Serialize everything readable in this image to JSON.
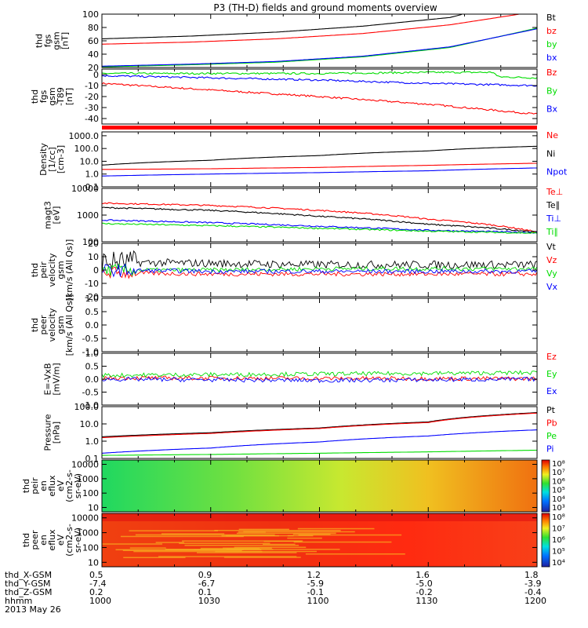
{
  "title": "P3 (TH-D) fields and ground moments overview",
  "colors": {
    "black": "#000000",
    "red": "#ff0000",
    "green": "#00dd00",
    "blue": "#0000ff"
  },
  "chart_data": [
    {
      "type": "line",
      "ylabel": [
        "thd",
        "fgs",
        "gsm",
        "[nT]"
      ],
      "ylim": [
        20,
        100
      ],
      "scale": "linear",
      "yticks": [
        20,
        40,
        60,
        80,
        100
      ],
      "ytick_labels": [
        "20",
        "40",
        "60",
        "80",
        "100"
      ],
      "series": [
        {
          "name": "Bt",
          "color": "#000000",
          "x": [
            0,
            0.2,
            0.4,
            0.6,
            0.8,
            0.83
          ],
          "y": [
            63,
            67,
            73,
            82,
            95,
            100
          ]
        },
        {
          "name": "bz",
          "color": "#ff0000",
          "x": [
            0,
            0.2,
            0.4,
            0.6,
            0.8,
            0.96
          ],
          "y": [
            55,
            58,
            63,
            71,
            84,
            100
          ]
        },
        {
          "name": "by",
          "color": "#00dd00",
          "x": [
            0,
            0.2,
            0.4,
            0.6,
            0.8,
            1.0
          ],
          "y": [
            21,
            24,
            28,
            36,
            50,
            79
          ]
        },
        {
          "name": "bx",
          "color": "#0000ff",
          "x": [
            0,
            0.2,
            0.4,
            0.6,
            0.8,
            1.0
          ],
          "y": [
            22,
            25,
            29,
            37,
            51,
            78
          ]
        }
      ]
    },
    {
      "type": "line",
      "ylabel": [
        "thd",
        "fgs",
        "gsm",
        "-T89",
        "[nT]"
      ],
      "ylim": [
        -45,
        5
      ],
      "scale": "linear",
      "yticks": [
        -40,
        -30,
        -20,
        -10,
        0
      ],
      "ytick_labels": [
        "-40",
        "-30",
        "-20",
        "-10",
        "0"
      ],
      "series": [
        {
          "name": "Bz",
          "color": "#ff0000",
          "x": [
            0,
            0.25,
            0.5,
            0.75,
            1.0
          ],
          "y": [
            -8,
            -14,
            -20,
            -27,
            -36
          ]
        },
        {
          "name": "By",
          "color": "#00dd00",
          "x": [
            0,
            0.25,
            0.5,
            0.75,
            0.9,
            0.91,
            1.0
          ],
          "y": [
            1,
            1,
            1,
            2,
            2,
            -2,
            -3
          ]
        },
        {
          "name": "Bx",
          "color": "#0000ff",
          "x": [
            0,
            0.25,
            0.5,
            0.75,
            1.0
          ],
          "y": [
            -1,
            -3,
            -5,
            -8,
            -10
          ]
        }
      ]
    },
    {
      "type": "line",
      "ylabel": [
        "Density",
        "[1/cc]",
        "[cm-3]"
      ],
      "ylim": [
        0.1,
        2000
      ],
      "scale": "log",
      "yticks": [
        0.1,
        1,
        10,
        100,
        1000
      ],
      "ytick_labels": [
        "0.1",
        "1.0",
        "10.0",
        "100.0",
        "1000.0"
      ],
      "series": [
        {
          "name": "Ne",
          "color": "#ff0000",
          "x": [
            0,
            0.25,
            0.5,
            0.75,
            1.0
          ],
          "y": [
            2.3,
            2.6,
            3.3,
            4.8,
            7
          ]
        },
        {
          "name": "Ni",
          "color": "#000000",
          "x": [
            0,
            0.25,
            0.5,
            0.75,
            1.0
          ],
          "y": [
            5,
            12,
            28,
            65,
            150
          ]
        },
        {
          "name": "Npot",
          "color": "#0000ff",
          "x": [
            0,
            0.25,
            0.5,
            0.75,
            1.0
          ],
          "y": [
            0.7,
            1.0,
            1.3,
            1.8,
            3
          ]
        }
      ]
    },
    {
      "type": "line",
      "ylabel": [
        "magt3",
        "[eV]"
      ],
      "ylim": [
        100,
        10000
      ],
      "scale": "log",
      "yticks": [
        100,
        1000,
        10000
      ],
      "ytick_labels": [
        "100",
        "1000",
        "10000"
      ],
      "series": [
        {
          "name": "Te⊥",
          "color": "#ff0000",
          "x": [
            0,
            0.25,
            0.5,
            0.75,
            1.0
          ],
          "y": [
            2800,
            2300,
            1500,
            700,
            230
          ]
        },
        {
          "name": "Te∥",
          "color": "#000000",
          "x": [
            0,
            0.25,
            0.5,
            0.75,
            1.0
          ],
          "y": [
            1900,
            1500,
            900,
            450,
            230
          ]
        },
        {
          "name": "Ti⊥",
          "color": "#0000ff",
          "x": [
            0,
            0.25,
            0.5,
            0.75,
            1.0
          ],
          "y": [
            650,
            520,
            380,
            270,
            220
          ]
        },
        {
          "name": "Ti∥",
          "color": "#00dd00",
          "x": [
            0,
            0.25,
            0.5,
            0.75,
            1.0
          ],
          "y": [
            480,
            400,
            320,
            250,
            210
          ]
        }
      ]
    },
    {
      "type": "line",
      "ylabel": [
        "thd",
        "peir",
        "velocity",
        "gsm",
        "[km/s (All Qs)]"
      ],
      "ylim": [
        -20,
        20
      ],
      "scale": "linear",
      "yticks": [
        -20,
        -10,
        0,
        10,
        20
      ],
      "ytick_labels": [
        "-20",
        "-10",
        "0",
        "10",
        "20"
      ],
      "series": [
        {
          "name": "Vt",
          "color": "#000000",
          "x": [
            0,
            0.25,
            0.5,
            0.75,
            1.0
          ],
          "y": [
            6,
            5,
            4,
            4,
            4
          ]
        },
        {
          "name": "Vz",
          "color": "#ff0000",
          "x": [
            0,
            0.25,
            0.5,
            0.75,
            1.0
          ],
          "y": [
            -2,
            -3,
            -3,
            -3,
            -3
          ]
        },
        {
          "name": "Vy",
          "color": "#00dd00",
          "x": [
            0,
            0.25,
            0.5,
            0.75,
            1.0
          ],
          "y": [
            0,
            0,
            1,
            1,
            1
          ]
        },
        {
          "name": "Vx",
          "color": "#0000ff",
          "x": [
            0,
            0.25,
            0.5,
            0.75,
            1.0
          ],
          "y": [
            0,
            -1,
            -1,
            -1,
            -1
          ]
        }
      ]
    },
    {
      "type": "line",
      "ylabel": [
        "thd",
        "peer",
        "velocity",
        "gsm",
        "[km/s (All Qs)]"
      ],
      "ylim": [
        -1,
        1
      ],
      "scale": "linear",
      "yticks": [
        -1,
        -0.5,
        0,
        0.5,
        1
      ],
      "ytick_labels": [
        "-1.0",
        "-0.5",
        "0.0",
        "0.5",
        "1.0"
      ],
      "series": [
        {
          "name": "Vt",
          "color": "#000000",
          "x": [],
          "y": []
        },
        {
          "name": "Vz",
          "color": "#ff0000",
          "x": [],
          "y": []
        },
        {
          "name": "Vy",
          "color": "#00dd00",
          "x": [],
          "y": []
        },
        {
          "name": "Vx",
          "color": "#0000ff",
          "x": [],
          "y": []
        }
      ]
    },
    {
      "type": "line",
      "ylabel": [
        "E=-VxB",
        "[mV/m]"
      ],
      "ylim": [
        -1,
        1
      ],
      "scale": "linear",
      "yticks": [
        -1,
        -0.5,
        0,
        0.5,
        1
      ],
      "ytick_labels": [
        "-1.0",
        "-0.5",
        "0.0",
        "0.5",
        "1.0"
      ],
      "series": [
        {
          "name": "Ez",
          "color": "#ff0000",
          "x": [
            0,
            0.5,
            1.0
          ],
          "y": [
            0.05,
            0.03,
            0.02
          ]
        },
        {
          "name": "Ey",
          "color": "#00dd00",
          "x": [
            0,
            0.5,
            1.0
          ],
          "y": [
            0.15,
            0.2,
            0.25
          ]
        },
        {
          "name": "Ex",
          "color": "#0000ff",
          "x": [
            0,
            0.5,
            1.0
          ],
          "y": [
            0.0,
            -0.05,
            0.0
          ]
        }
      ]
    },
    {
      "type": "line",
      "ylabel": [
        "Pressure",
        "[nPa]"
      ],
      "ylim": [
        0.1,
        100
      ],
      "scale": "log",
      "yticks": [
        0.1,
        1,
        10,
        100
      ],
      "ytick_labels": [
        "0.1",
        "1.0",
        "10.0",
        "100.0"
      ],
      "series": [
        {
          "name": "Pt",
          "color": "#000000",
          "x": [
            0,
            0.25,
            0.5,
            0.75,
            1.0
          ],
          "y": [
            1.8,
            3.1,
            5.8,
            13,
            45
          ]
        },
        {
          "name": "Pb",
          "color": "#ff0000",
          "x": [
            0,
            0.25,
            0.5,
            0.75,
            1.0
          ],
          "y": [
            1.6,
            2.8,
            5.4,
            12,
            42
          ]
        },
        {
          "name": "Pe",
          "color": "#00dd00",
          "x": [
            0,
            0.25,
            0.5,
            0.75,
            1.0
          ],
          "y": [
            0.15,
            0.17,
            0.2,
            0.24,
            0.3
          ]
        },
        {
          "name": "Pi",
          "color": "#0000ff",
          "x": [
            0,
            0.25,
            0.5,
            0.75,
            1.0
          ],
          "y": [
            0.2,
            0.4,
            0.9,
            2.0,
            4.5
          ]
        }
      ]
    },
    {
      "type": "heatmap",
      "ylabel": [
        "thd",
        "peir",
        "en",
        "eflux",
        "eV",
        "(cm2-s-",
        "sr-eV)"
      ],
      "ylim": [
        5,
        20000
      ],
      "scale": "log",
      "yticks": [
        10,
        100,
        1000,
        10000
      ],
      "ytick_labels": [
        "10",
        "100",
        "1000",
        "10000"
      ],
      "colorbar": {
        "ticks": [
          "10³",
          "10⁴",
          "10⁵",
          "10⁶",
          "10⁷",
          "10⁸"
        ]
      },
      "description_levels": {
        "left": 5.5,
        "right": 7.2
      }
    },
    {
      "type": "heatmap",
      "ylabel": [
        "thd",
        "peer",
        "en",
        "eflux",
        "eV",
        "(cm2-s-",
        "sr-eV)"
      ],
      "ylim": [
        5,
        20000
      ],
      "scale": "log",
      "yticks": [
        10,
        100,
        1000,
        10000
      ],
      "ytick_labels": [
        "10",
        "100",
        "1000",
        "10000"
      ],
      "colorbar": {
        "ticks": [
          "10⁴",
          "10⁵",
          "10⁶",
          "10⁷",
          "10⁸"
        ]
      },
      "description_levels": {
        "left": 7.2,
        "right": 7.6
      }
    }
  ],
  "ephemeris": {
    "labels": [
      "thd_X-GSM",
      "thd_Y-GSM",
      "thd_Z-GSM",
      "hhmm",
      "2013 May 26"
    ],
    "columns": [
      [
        "0.5",
        "-7.4",
        "0.2",
        "1000"
      ],
      [
        "0.9",
        "-6.7",
        "0.1",
        "1030"
      ],
      [
        "1.2",
        "-5.9",
        "-0.1",
        "1100"
      ],
      [
        "1.6",
        "-5.0",
        "-0.2",
        "1130"
      ],
      [
        "1.8",
        "-3.9",
        "-0.4",
        "1200"
      ]
    ]
  }
}
